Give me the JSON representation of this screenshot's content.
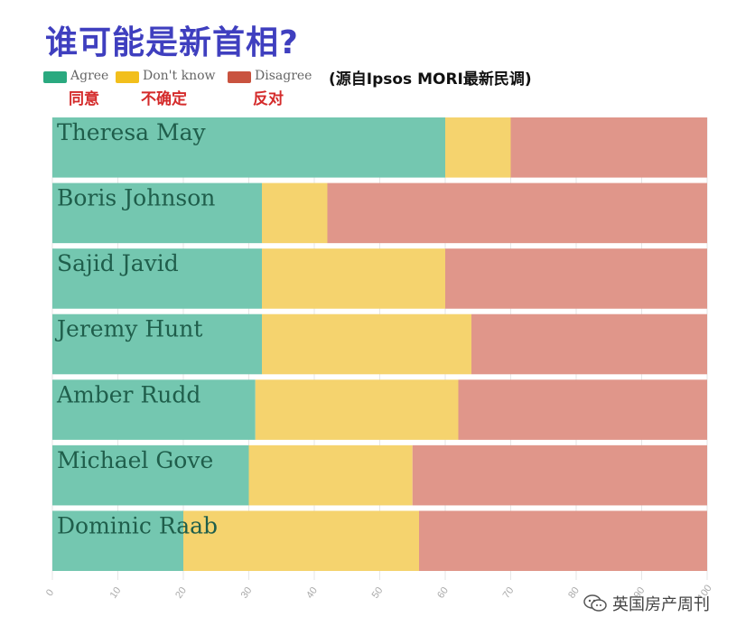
{
  "title": "谁可能是新首相?",
  "source_note": "(源自Ipsos MORI最新民调)",
  "legend": [
    {
      "label": "Agree",
      "cn": "同意",
      "color": "#2aa97f"
    },
    {
      "label": "Don't know",
      "cn": "不确定",
      "color": "#f2bf1c"
    },
    {
      "label": "Disagree",
      "cn": "反对",
      "color": "#c9533f"
    }
  ],
  "watermark": {
    "text": "英国房产周刊",
    "icon": "wechat-icon"
  },
  "chart_data": {
    "type": "bar",
    "orientation": "horizontal",
    "stacked": true,
    "categories": [
      "Theresa May",
      "Boris Johnson",
      "Sajid Javid",
      "Jeremy Hunt",
      "Amber Rudd",
      "Michael Gove",
      "Dominic Raab"
    ],
    "series": [
      {
        "name": "Agree",
        "values": [
          60,
          32,
          32,
          32,
          31,
          30,
          20
        ]
      },
      {
        "name": "Don't know",
        "values": [
          10,
          10,
          28,
          32,
          31,
          25,
          36
        ]
      },
      {
        "name": "Disagree",
        "values": [
          30,
          58,
          40,
          36,
          38,
          45,
          44
        ]
      }
    ],
    "xlim": [
      0,
      100
    ],
    "xticks": [
      0,
      10,
      20,
      30,
      40,
      50,
      60,
      70,
      80,
      90,
      100
    ],
    "grid": true
  }
}
